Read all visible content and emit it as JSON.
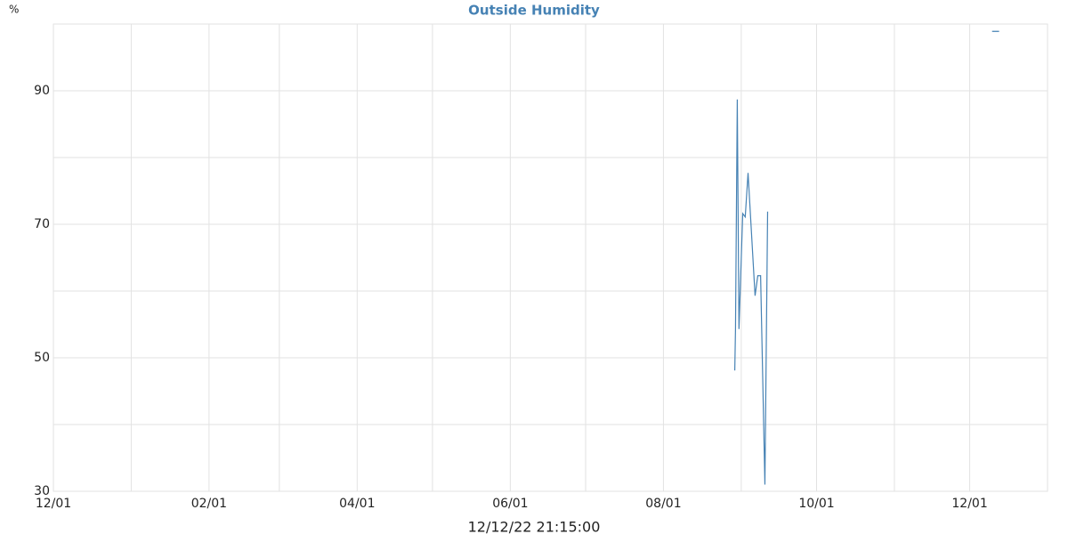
{
  "chart_data": {
    "type": "line",
    "title": "Outside Humidity",
    "y_label": "%",
    "footer": "12/12/22 21:15:00",
    "x": [
      "2022-08-29T10:00",
      "2022-08-29T17:00",
      "2022-08-30T10:00",
      "2022-08-31T02:00",
      "2022-09-01T14:00",
      "2022-09-02T14:00",
      "2022-09-03T17:00",
      "2022-09-06T12:00",
      "2022-09-07T14:00",
      "2022-09-08T17:00",
      "2022-09-10T10:00",
      "2022-09-11T12:00",
      "2022-11-01T00:00",
      "2022-12-09T22:00",
      "2022-12-12T17:00"
    ],
    "series": [
      {
        "name": "Outside Humidity",
        "color": "#4682b4",
        "values": [
          48.1,
          54.3,
          88.7,
          54.3,
          71.6,
          71.1,
          77.7,
          59.3,
          62.3,
          62.3,
          31,
          71.9,
          null,
          98.9,
          98.9
        ]
      }
    ],
    "xlim": [
      "2021-12-01T00:00",
      "2023-01-01T00:00"
    ],
    "xticks": [
      {
        "value": "2021-12-01T00:00",
        "label": "12/01"
      },
      {
        "value": "2022-01-01T00:00",
        "label": null
      },
      {
        "value": "2022-02-01T00:00",
        "label": "02/01"
      },
      {
        "value": "2022-03-01T00:00",
        "label": null
      },
      {
        "value": "2022-04-01T00:00",
        "label": "04/01"
      },
      {
        "value": "2022-05-01T00:00",
        "label": null
      },
      {
        "value": "2022-06-01T00:00",
        "label": "06/01"
      },
      {
        "value": "2022-07-01T00:00",
        "label": null
      },
      {
        "value": "2022-08-01T00:00",
        "label": "08/01"
      },
      {
        "value": "2022-09-01T00:00",
        "label": null
      },
      {
        "value": "2022-10-01T00:00",
        "label": "10/01"
      },
      {
        "value": "2022-11-01T00:00",
        "label": null
      },
      {
        "value": "2022-12-01T00:00",
        "label": "12/01"
      }
    ],
    "ylim": [
      30,
      100
    ],
    "yticks": [
      30,
      {
        "value": 40,
        "label": null
      },
      50,
      {
        "value": 60,
        "label": null
      },
      70,
      {
        "value": 80,
        "label": null
      },
      90,
      {
        "value": 100,
        "label": null
      }
    ],
    "grid": true
  }
}
